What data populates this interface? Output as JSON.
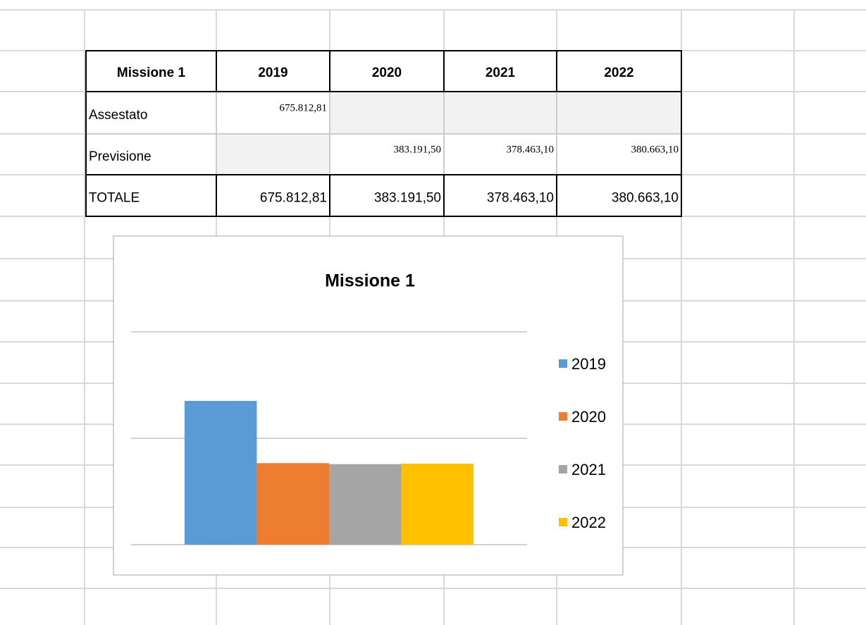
{
  "table": {
    "header": [
      "Missione 1",
      "2019",
      "2020",
      "2021",
      "2022"
    ],
    "rows": [
      [
        "Assestato",
        "675.812,81",
        null,
        null,
        null
      ],
      [
        "Previsione",
        null,
        "383.191,50",
        "378.463,10",
        "380.663,10"
      ],
      [
        "TOTALE",
        "675.812,81",
        "383.191,50",
        "378.463,10",
        "380.663,10"
      ]
    ]
  },
  "chart_data": {
    "type": "bar",
    "title": "Missione 1",
    "categories": [
      null
    ],
    "series": [
      {
        "name": "2019",
        "color": "#5b9bd5",
        "values": [
          675812.81
        ]
      },
      {
        "name": "2020",
        "color": "#ed7d31",
        "values": [
          383191.5
        ]
      },
      {
        "name": "2021",
        "color": "#a5a5a5",
        "values": [
          378463.1
        ]
      },
      {
        "name": "2022",
        "color": "#ffc000",
        "values": [
          380663.1
        ]
      }
    ],
    "ylim": [
      0,
      1000000
    ],
    "yticks": [
      0,
      500000,
      1000000
    ],
    "grid": true,
    "legend": "right"
  }
}
